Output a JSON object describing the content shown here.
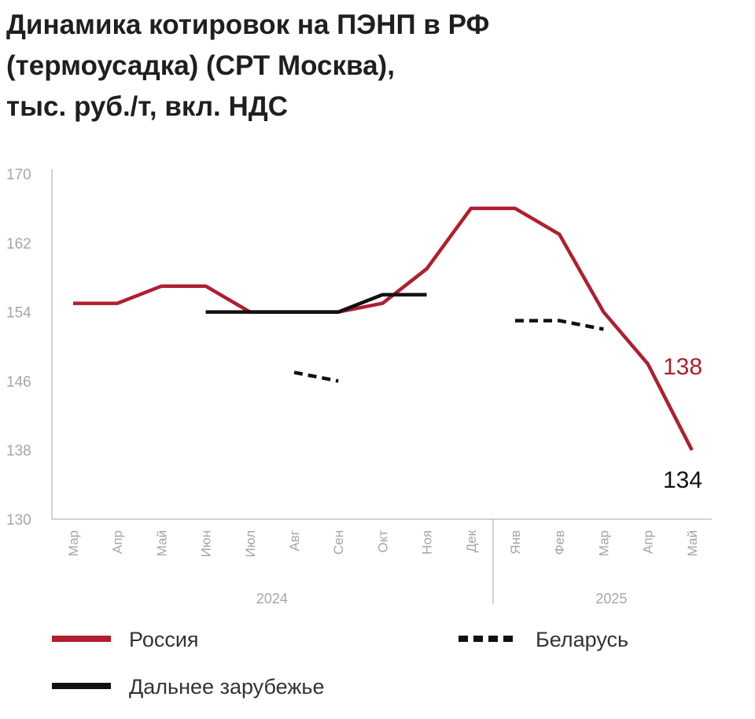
{
  "title_lines": [
    "Динамика котировок на ПЭНП в РФ",
    "(термоусадка) (СРТ Москва),",
    "тыс. руб./т, вкл. НДС"
  ],
  "chart_data": {
    "type": "line",
    "title": "Динамика котировок на ПЭНП в РФ (термоусадка) (СРТ Москва), тыс. руб./т, вкл. НДС",
    "categories": [
      "Мар",
      "Апр",
      "Май",
      "Июн",
      "Июл",
      "Авг",
      "Сен",
      "Окт",
      "Ноя",
      "Дек",
      "Янв",
      "Фев",
      "Мар",
      "Апр",
      "Май"
    ],
    "year_groups": [
      {
        "label": "2024",
        "from": 0,
        "to": 9
      },
      {
        "label": "2025",
        "from": 10,
        "to": 14
      }
    ],
    "ylim": [
      130,
      170
    ],
    "yticks": [
      130,
      138,
      146,
      154,
      162,
      170
    ],
    "grid": false,
    "legend_position": "bottom",
    "series": [
      {
        "name": "Россия",
        "color": "#b01e2f",
        "style": "solid",
        "values": [
          155,
          155,
          157,
          157,
          154,
          154,
          154,
          155,
          159,
          166,
          166,
          163,
          154,
          148,
          138
        ]
      },
      {
        "name": "Беларусь",
        "color": "#111111",
        "style": "dashed",
        "values": [
          null,
          null,
          null,
          null,
          null,
          147,
          146,
          null,
          null,
          null,
          153,
          153,
          152,
          null,
          null
        ]
      },
      {
        "name": "Дальнее зарубежье",
        "color": "#111111",
        "style": "solid",
        "values": [
          null,
          null,
          null,
          154,
          154,
          154,
          154,
          156,
          156,
          null,
          null,
          null,
          null,
          null,
          null
        ]
      }
    ],
    "annotations": [
      {
        "text": "138",
        "color": "#b01e2f"
      },
      {
        "text": "134",
        "color": "#111111"
      }
    ]
  }
}
